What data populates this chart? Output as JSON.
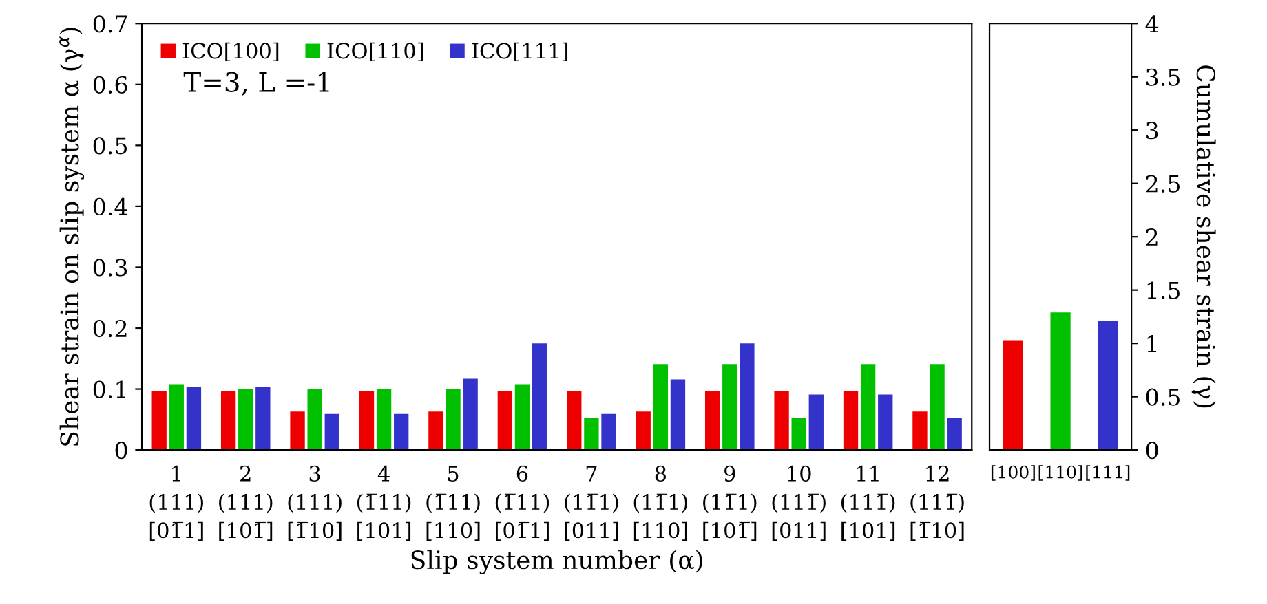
{
  "chart_data": [
    {
      "type": "bar",
      "ylabel": "Shear strain on slip system α (γ$^{α}$)",
      "xlabel": "Slip system number (α)",
      "categories": [
        "1\n(111)\n[01̅1]",
        "2\n(111)\n[101̅]",
        "3\n(111)\n[1̅10]",
        "4\n(1̅11)\n[101]",
        "5\n(1̅11)\n[110]",
        "6\n(1̅11)\n[01̅1]",
        "7\n(11̅1)\n[011]",
        "8\n(11̅1)\n[110]",
        "9\n(11̅1)\n[101̅]",
        "10\n(111̅)\n[011]",
        "11\n(111̅)\n[101]",
        "12\n(111̅)\n[1̅10]"
      ],
      "series": [
        {
          "name": "ICO[100]",
          "color": "#ee0000",
          "values": [
            0.097,
            0.097,
            0.063,
            0.097,
            0.063,
            0.097,
            0.097,
            0.063,
            0.097,
            0.097,
            0.097,
            0.063
          ]
        },
        {
          "name": "ICO[110]",
          "color": "#00c000",
          "values": [
            0.108,
            0.1,
            0.1,
            0.1,
            0.1,
            0.108,
            0.052,
            0.141,
            0.141,
            0.052,
            0.141,
            0.141
          ]
        },
        {
          "name": "ICO[111]",
          "color": "#3333cc",
          "values": [
            0.103,
            0.103,
            0.059,
            0.059,
            0.117,
            0.175,
            0.059,
            0.116,
            0.175,
            0.091,
            0.091,
            0.052
          ]
        }
      ],
      "ylim": [
        0,
        0.7
      ],
      "yticks": [
        0,
        0.1,
        0.2,
        0.3,
        0.4,
        0.5,
        0.6,
        0.7
      ],
      "annotations": [
        "T=3, L =-1"
      ],
      "legend": "top left",
      "grid": false
    },
    {
      "type": "bar",
      "y2label": "Cumulative shear strain (γ)",
      "categories": [
        "[100]",
        "[110]",
        "[111]"
      ],
      "series": [
        {
          "axis": "y2",
          "colors": [
            "#ee0000",
            "#00c000",
            "#3333cc"
          ],
          "values": [
            1.03,
            1.29,
            1.21
          ]
        }
      ],
      "y2lim": [
        0,
        4
      ],
      "y2ticks": [
        0,
        0.5,
        1,
        1.5,
        2,
        2.5,
        3,
        3.5,
        4
      ],
      "grid": false
    }
  ]
}
